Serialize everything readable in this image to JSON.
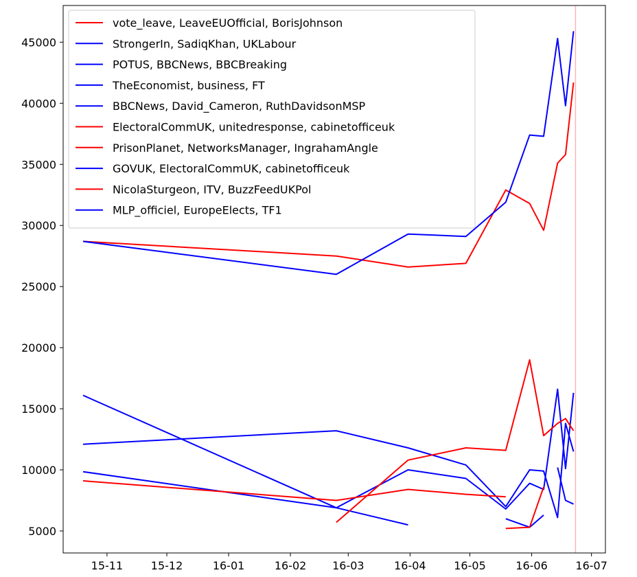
{
  "chart_data": {
    "type": "line",
    "title": "",
    "xlabel": "",
    "ylabel": "",
    "xlim": [
      "2015-10-10",
      "2016-07-08"
    ],
    "ylim": [
      3200,
      48000
    ],
    "x_ticks": [
      "2015-11-01",
      "2015-12-01",
      "2016-01-01",
      "2016-02-01",
      "2016-03-01",
      "2016-04-01",
      "2016-05-01",
      "2016-06-01",
      "2016-07-01"
    ],
    "x_tick_labels": [
      "15-11",
      "15-12",
      "16-01",
      "16-02",
      "16-03",
      "16-04",
      "16-05",
      "16-06",
      "16-07"
    ],
    "y_ticks": [
      5000,
      10000,
      15000,
      20000,
      25000,
      30000,
      35000,
      40000,
      45000
    ],
    "y_tick_labels": [
      "5000",
      "10000",
      "15000",
      "20000",
      "25000",
      "30000",
      "35000",
      "40000",
      "45000"
    ],
    "grid": false,
    "legend_position": "upper-left",
    "vertical_line": {
      "x": "2016-06-23",
      "color": "#ffb3b3"
    },
    "series": [
      {
        "name": "vote_leave, LeaveEUOfficial, BorisJohnson",
        "color": "#ff0000",
        "x": [
          "2015-10-20",
          "2016-02-24",
          "2016-03-31",
          "2016-04-29",
          "2016-05-19",
          "2016-05-31",
          "2016-06-07",
          "2016-06-14",
          "2016-06-18",
          "2016-06-22"
        ],
        "y": [
          28700,
          27500,
          26600,
          26900,
          32900,
          31800,
          29600,
          35100,
          35800,
          41700
        ]
      },
      {
        "name": "StrongerIn, SadiqKhan, UKLabour",
        "color": "#0000ff",
        "x": [
          "2015-10-20",
          "2016-02-24",
          "2016-03-31",
          "2016-04-29",
          "2016-05-19",
          "2016-05-31",
          "2016-06-07",
          "2016-06-14",
          "2016-06-18",
          "2016-06-22"
        ],
        "y": [
          28700,
          26000,
          29300,
          29100,
          31900,
          37400,
          37300,
          45300,
          39800,
          45900
        ]
      },
      {
        "name": "POTUS, BBCNews, BBCBreaking",
        "color": "#0000ff",
        "x": [
          "2015-10-20",
          "2016-02-24",
          "2016-03-31"
        ],
        "y": [
          16100,
          6900,
          5500
        ]
      },
      {
        "name": "TheEconomist, business, FT",
        "color": "#0000ff",
        "x": [
          "2015-10-20",
          "2016-02-24",
          "2016-03-31",
          "2016-04-29",
          "2016-05-19",
          "2016-05-31",
          "2016-06-07",
          "2016-06-14",
          "2016-06-18",
          "2016-06-22"
        ],
        "y": [
          12100,
          13200,
          11800,
          10400,
          7000,
          10000,
          9900,
          6100,
          13800,
          11500
        ]
      },
      {
        "name": "BBCNews, David_Cameron, RuthDavidsonMSP",
        "color": "#0000ff",
        "x": [
          "2015-10-20",
          "2016-02-24",
          "2016-03-31",
          "2016-04-29",
          "2016-05-19",
          "2016-05-31",
          "2016-06-07",
          "2016-06-14",
          "2016-06-18",
          "2016-06-22"
        ],
        "y": [
          9850,
          6900,
          10000,
          9300,
          6800,
          8900,
          8400,
          16600,
          10100,
          16300
        ]
      },
      {
        "name": "ElectoralCommUK, unitedresponse, cabinetofficeuk",
        "color": "#ff0000",
        "x": [
          "2015-10-20",
          "2016-02-24",
          "2016-03-31",
          "2016-04-29",
          "2016-05-19"
        ],
        "y": [
          9100,
          7500,
          8400,
          8000,
          7800
        ]
      },
      {
        "name": "PrisonPlanet, NetworksManager, IngrahamAngle",
        "color": "#ff0000",
        "x": [
          "2016-02-24",
          "2016-03-31",
          "2016-04-29",
          "2016-05-19",
          "2016-05-31",
          "2016-06-07",
          "2016-06-14",
          "2016-06-18",
          "2016-06-22"
        ],
        "y": [
          5700,
          10800,
          11800,
          11600,
          19000,
          12800,
          13800,
          14200,
          13200
        ]
      },
      {
        "name": "GOVUK, ElectoralCommUK, cabinetofficeuk",
        "color": "#0000ff",
        "x": [
          "2016-05-19",
          "2016-05-31",
          "2016-06-07"
        ],
        "y": [
          6000,
          5300,
          6300
        ]
      },
      {
        "name": "NicolaSturgeon, ITV, BuzzFeedUKPol",
        "color": "#ff0000",
        "x": [
          "2016-05-19",
          "2016-05-31",
          "2016-06-07"
        ],
        "y": [
          5200,
          5300,
          8600
        ]
      },
      {
        "name": "MLP_officiel, EuropeElects, TF1",
        "color": "#0000ff",
        "x": [
          "2016-06-14",
          "2016-06-18",
          "2016-06-22"
        ],
        "y": [
          10200,
          7500,
          7200
        ]
      }
    ]
  }
}
